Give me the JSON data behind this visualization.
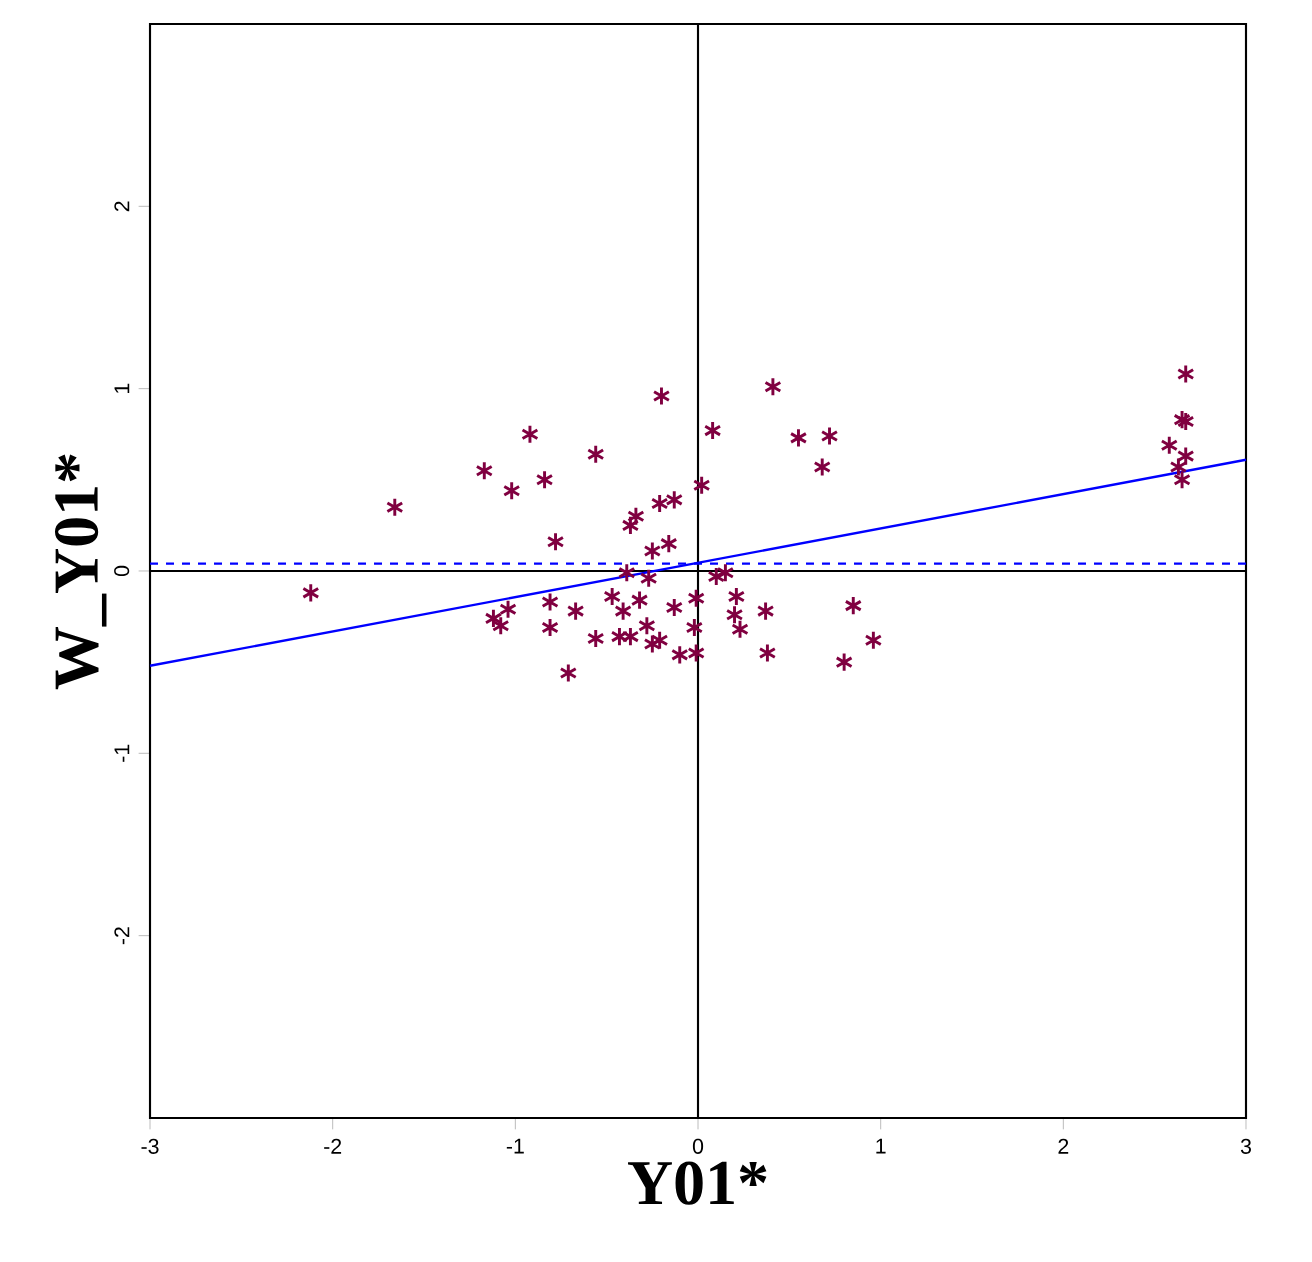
{
  "chart_data": {
    "type": "scatter",
    "xlabel": "Y01*",
    "ylabel": "W_Y01*",
    "xlim": [
      -3,
      3
    ],
    "ylim": [
      -3,
      3
    ],
    "xticks": [
      -3,
      -2,
      -1,
      0,
      1,
      2,
      3
    ],
    "yticks": [
      -2,
      -1,
      0,
      1,
      2
    ],
    "series": [
      {
        "type": "scatter",
        "marker": "cross",
        "color": "#800040",
        "x": [
          -2.12,
          -1.66,
          -1.17,
          -1.02,
          -0.92,
          -0.84,
          -0.78,
          -0.56,
          -0.2,
          0.08,
          0.02,
          0.41,
          0.55,
          0.72,
          0.68,
          -0.34,
          -0.37,
          -0.21,
          -0.13,
          -0.16,
          -0.25,
          -0.39,
          -0.27,
          0.15,
          0.1,
          -1.12,
          -1.04,
          -1.08,
          -0.81,
          -0.81,
          -0.67,
          -0.47,
          -0.41,
          -0.56,
          -0.43,
          -0.28,
          -0.21,
          -0.13,
          -0.02,
          -0.01,
          -0.1,
          -0.01,
          -0.71,
          0.21,
          0.2,
          0.23,
          0.37,
          0.38,
          0.85,
          0.96,
          0.8,
          2.67,
          2.65,
          2.67,
          2.58,
          2.67,
          2.63,
          2.65,
          -0.32,
          -0.37,
          -0.25
        ],
        "values": [
          -0.12,
          0.35,
          0.55,
          0.44,
          0.75,
          0.5,
          0.16,
          0.64,
          0.96,
          0.77,
          0.47,
          1.01,
          0.73,
          0.74,
          0.57,
          0.3,
          0.25,
          0.37,
          0.39,
          0.15,
          0.11,
          -0.01,
          -0.04,
          -0.01,
          -0.03,
          -0.26,
          -0.21,
          -0.3,
          -0.17,
          -0.31,
          -0.22,
          -0.14,
          -0.22,
          -0.37,
          -0.36,
          -0.3,
          -0.38,
          -0.2,
          -0.31,
          -0.15,
          -0.46,
          -0.45,
          -0.56,
          -0.14,
          -0.24,
          -0.32,
          -0.22,
          -0.45,
          -0.19,
          -0.38,
          -0.5,
          1.08,
          0.83,
          0.82,
          0.69,
          0.63,
          0.57,
          0.5,
          -0.16,
          -0.36,
          -0.4
        ]
      },
      {
        "type": "line",
        "color": "#0000ff",
        "x": [
          -3,
          3
        ],
        "values": [
          -0.52,
          0.61
        ]
      }
    ],
    "ref_lines": [
      {
        "axis": "x",
        "value": 0,
        "color": "#000000",
        "line_style": "solid"
      },
      {
        "axis": "y",
        "value": 0,
        "color": "#000000",
        "line_style": "solid"
      },
      {
        "axis": "y",
        "value": 0.04,
        "color": "#0000ff",
        "line_style": "dashed"
      }
    ]
  }
}
